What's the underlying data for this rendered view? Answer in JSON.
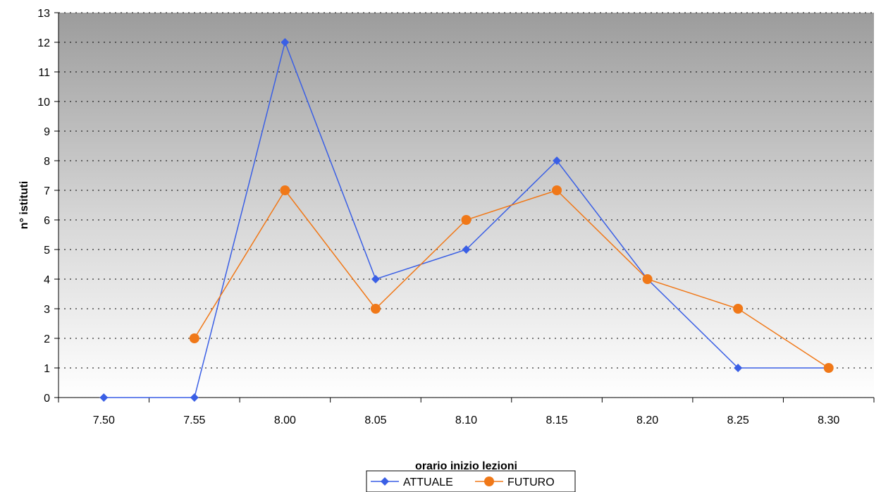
{
  "chart_data": {
    "type": "line",
    "categories": [
      "7.50",
      "7.55",
      "8.00",
      "8.05",
      "8.10",
      "8.15",
      "8.20",
      "8.25",
      "8.30"
    ],
    "series": [
      {
        "name": "ATTUALE",
        "values": [
          0,
          0,
          12,
          4,
          5,
          8,
          4,
          1,
          1
        ],
        "color": "#3a5fe5",
        "marker": "diamond"
      },
      {
        "name": "FUTURO",
        "values": [
          null,
          2,
          7,
          3,
          6,
          7,
          4,
          3,
          1
        ],
        "color": "#f07818",
        "marker": "circle"
      }
    ],
    "xlabel": "orario inizio lezioni",
    "ylabel": "n° istituti",
    "ylim": [
      0,
      13
    ],
    "yticks": [
      0,
      1,
      2,
      3,
      4,
      5,
      6,
      7,
      8,
      9,
      10,
      11,
      12,
      13
    ],
    "grid": "horizontal dotted",
    "legend_position": "bottom",
    "plot_background": "gradient gray to white",
    "axis_color": "#000000",
    "grid_color": "#000000"
  }
}
